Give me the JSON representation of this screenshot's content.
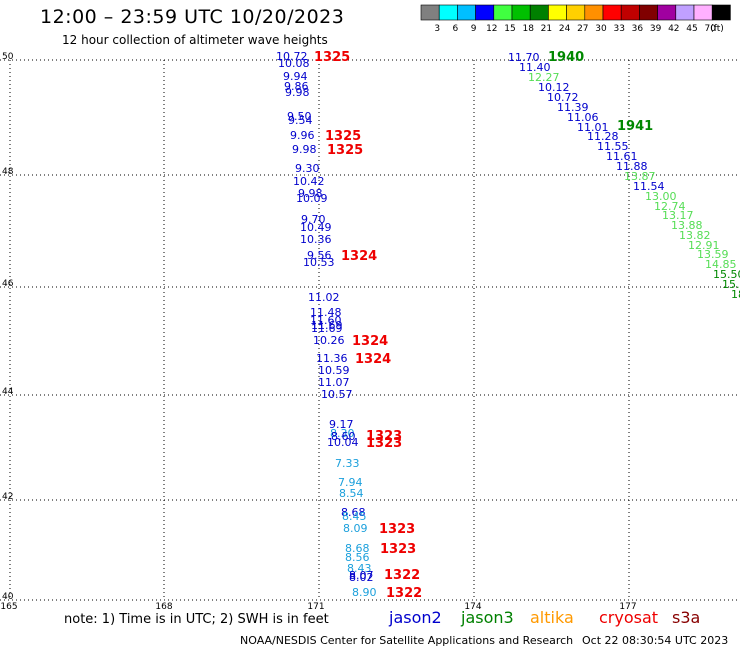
{
  "header": {
    "title": "12:00 – 23:59 UTC 10/20/2023",
    "subtitle": "12 hour collection of altimeter wave heights"
  },
  "legend": {
    "unit": "(ft)",
    "bins": [
      {
        "label": "3",
        "color": "#808080"
      },
      {
        "label": "6",
        "color": "#00ffff"
      },
      {
        "label": "9",
        "color": "#00bfff"
      },
      {
        "label": "12",
        "color": "#0000ff"
      },
      {
        "label": "15",
        "color": "#40ff40"
      },
      {
        "label": "18",
        "color": "#00c000"
      },
      {
        "label": "21",
        "color": "#008000"
      },
      {
        "label": "24",
        "color": "#ffff00"
      },
      {
        "label": "27",
        "color": "#ffd000"
      },
      {
        "label": "30",
        "color": "#ff9000"
      },
      {
        "label": "33",
        "color": "#ff0000"
      },
      {
        "label": "36",
        "color": "#c00000"
      },
      {
        "label": "39",
        "color": "#800000"
      },
      {
        "label": "42",
        "color": "#a000a0"
      },
      {
        "label": "45",
        "color": "#c0a0ff"
      },
      {
        "label": "70",
        "color": "#ffb0ff"
      },
      {
        "label": "",
        "color": "#000000"
      }
    ]
  },
  "axes": {
    "lat_labels": [
      "50",
      "48",
      "46",
      "44",
      "42",
      "40"
    ],
    "lon_labels": [
      "165",
      "168",
      "171",
      "174",
      "177"
    ]
  },
  "tracks": {
    "jason3_track_values": [
      "10.72",
      "10.08",
      "9.94",
      "9.86",
      "9.98",
      "9.50",
      "9.54",
      "9.96",
      "9.98",
      "9.30",
      "10.42",
      "9.98",
      "10.09",
      "9.70",
      "10.49",
      "10.36",
      "9.56",
      "10.53",
      "11.02",
      "11.48",
      "11.60",
      "11.69",
      "11.69",
      "10.26",
      "11.36",
      "10.59",
      "11.07",
      "10.57"
    ],
    "jason3_track_values_lower": [
      "9.17",
      "8.30",
      "8.60",
      "10.04",
      "7.33",
      "7.94",
      "8.54",
      "8.68",
      "8.45",
      "8.09",
      "8.68",
      "8.56",
      "8.43",
      "8.07",
      "8.02",
      "8.90"
    ],
    "ne_track_values": [
      "11.70",
      "11.40",
      "12.27",
      "10.12",
      "10.72",
      "11.39",
      "11.06",
      "11.01",
      "11.28",
      "11.55",
      "11.61",
      "11.88",
      "13.87",
      "11.54",
      "13.00",
      "12.74",
      "13.17",
      "13.88",
      "13.82",
      "12.91",
      "13.59",
      "14.85",
      "15.50",
      "15.",
      "18"
    ],
    "pass_times": [
      "1325",
      "1325",
      "1325",
      "1324",
      "1324",
      "1324",
      "1323",
      "1323",
      "1323",
      "1323",
      "1322",
      "1322",
      "1940",
      "1941"
    ]
  },
  "notes": {
    "note_text": "note: 1) Time is in UTC; 2) SWH is in feet"
  },
  "satellites": [
    {
      "name": "jason2",
      "color": "#0000cc"
    },
    {
      "name": "jason3",
      "color": "#008000"
    },
    {
      "name": "altika",
      "color": "#ff9900"
    },
    {
      "name": "cryosat",
      "color": "#ee0000"
    },
    {
      "name": "s3a",
      "color": "#880000"
    }
  ],
  "footer": {
    "center": "NOAA/NESDIS Center for Satellite Applications and Research",
    "datetime": "Oct 22 08:30:54 UTC 2023"
  }
}
